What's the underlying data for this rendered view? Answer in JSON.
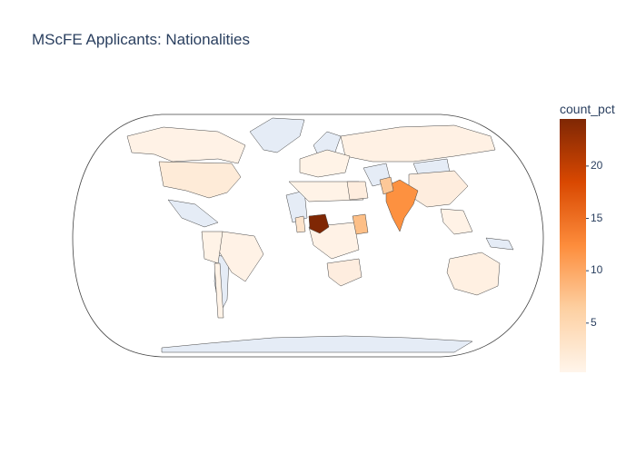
{
  "title": "MScFE Applicants: Nationalities",
  "colorbar": {
    "title": "count_pct",
    "ticks": [
      {
        "label": "20",
        "value": 20
      },
      {
        "label": "15",
        "value": 15
      },
      {
        "label": "10",
        "value": 10
      },
      {
        "label": "5",
        "value": 5
      }
    ],
    "range": [
      0.3,
      24.5
    ],
    "colors": [
      "#fff5eb",
      "#fdd0a2",
      "#fd8d3c",
      "#d94801",
      "#7f2704"
    ]
  },
  "map": {
    "projection": "natural earth",
    "no_data_color": "#e5ecf6",
    "border_color": "#444444"
  },
  "chart_data": {
    "type": "choropleth",
    "title": "MScFE Applicants: Nationalities",
    "colorbar_title": "count_pct",
    "series": [
      {
        "country": "Nigeria",
        "count_pct": 24.5
      },
      {
        "country": "India",
        "count_pct": 13.0
      },
      {
        "country": "Kenya",
        "count_pct": 6.0
      },
      {
        "country": "Pakistan",
        "count_pct": 5.0
      },
      {
        "country": "United States",
        "count_pct": 2.0
      },
      {
        "country": "Ghana",
        "count_pct": 2.0
      },
      {
        "country": "China",
        "count_pct": 1.0
      },
      {
        "country": "Egypt",
        "count_pct": 1.0
      },
      {
        "country": "South Africa",
        "count_pct": 1.0
      },
      {
        "country": "Australia",
        "count_pct": 0.8
      },
      {
        "country": "Brazil",
        "count_pct": 0.5
      },
      {
        "country": "Russia",
        "count_pct": 0.5
      },
      {
        "country": "Canada",
        "count_pct": 0.5
      }
    ]
  }
}
